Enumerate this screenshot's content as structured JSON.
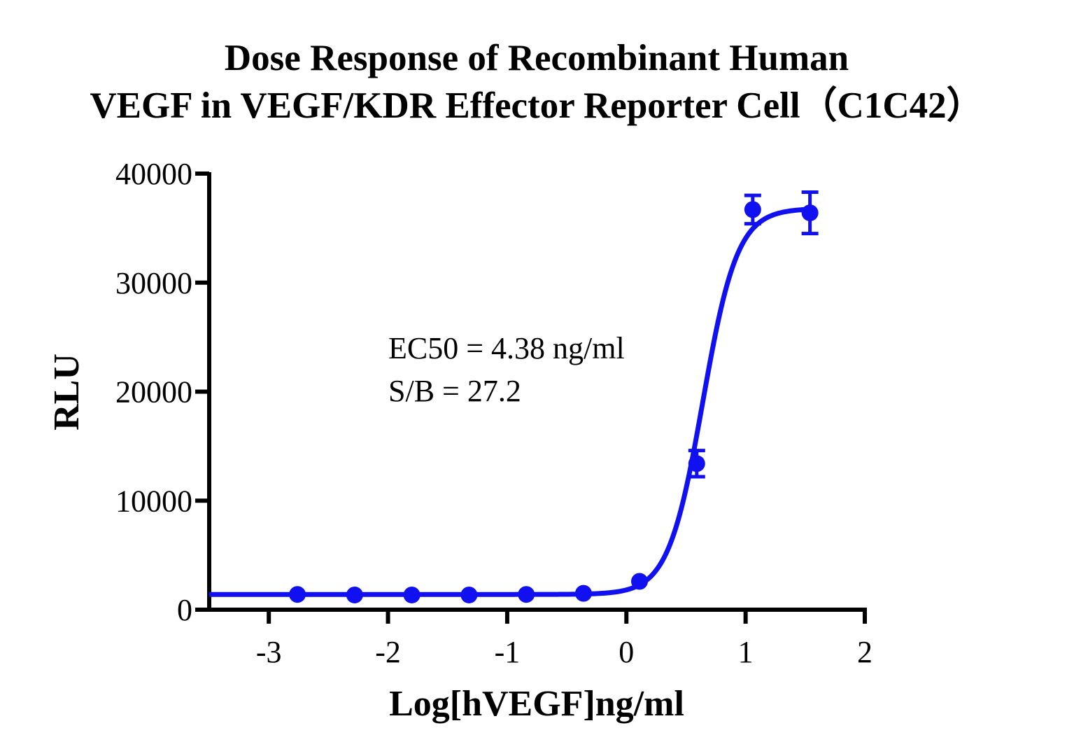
{
  "chart_data": {
    "type": "scatter",
    "title_lines": [
      "Dose Response of Recombinant Human",
      "VEGF in VEGF/KDR Effector Reporter Cell（C1C42）"
    ],
    "xlabel": "Log[hVEGF]ng/ml",
    "ylabel": "RLU",
    "xlim": [
      -3.5,
      2
    ],
    "ylim": [
      0,
      40000
    ],
    "x_ticks": [
      -3,
      -2,
      -1,
      0,
      1,
      2
    ],
    "x_tick_labels": [
      "-3",
      "-2",
      "-1",
      "0",
      "1",
      "2"
    ],
    "y_ticks": [
      0,
      10000,
      20000,
      30000,
      40000
    ],
    "y_tick_labels": [
      "0",
      "10000",
      "20000",
      "30000",
      "40000"
    ],
    "grid": false,
    "color": "#1010f0",
    "annotations": [
      "EC50 = 4.38 ng/ml",
      "S/B = 27.2"
    ],
    "series": [
      {
        "x": [
          -2.76,
          -2.28,
          -1.8,
          -1.32,
          -0.84,
          -0.36,
          0.11,
          0.59,
          1.06,
          1.54
        ],
        "y": [
          1400,
          1350,
          1350,
          1350,
          1400,
          1500,
          2600,
          13400,
          36700,
          36400
        ],
        "error": [
          0,
          0,
          0,
          0,
          0,
          0,
          0,
          1200,
          1300,
          1900
        ]
      }
    ],
    "fit": {
      "model": "4PL",
      "bottom": 1400,
      "top": 36800,
      "log_ec50": 0.6415,
      "hill_slope": 3.0
    }
  }
}
